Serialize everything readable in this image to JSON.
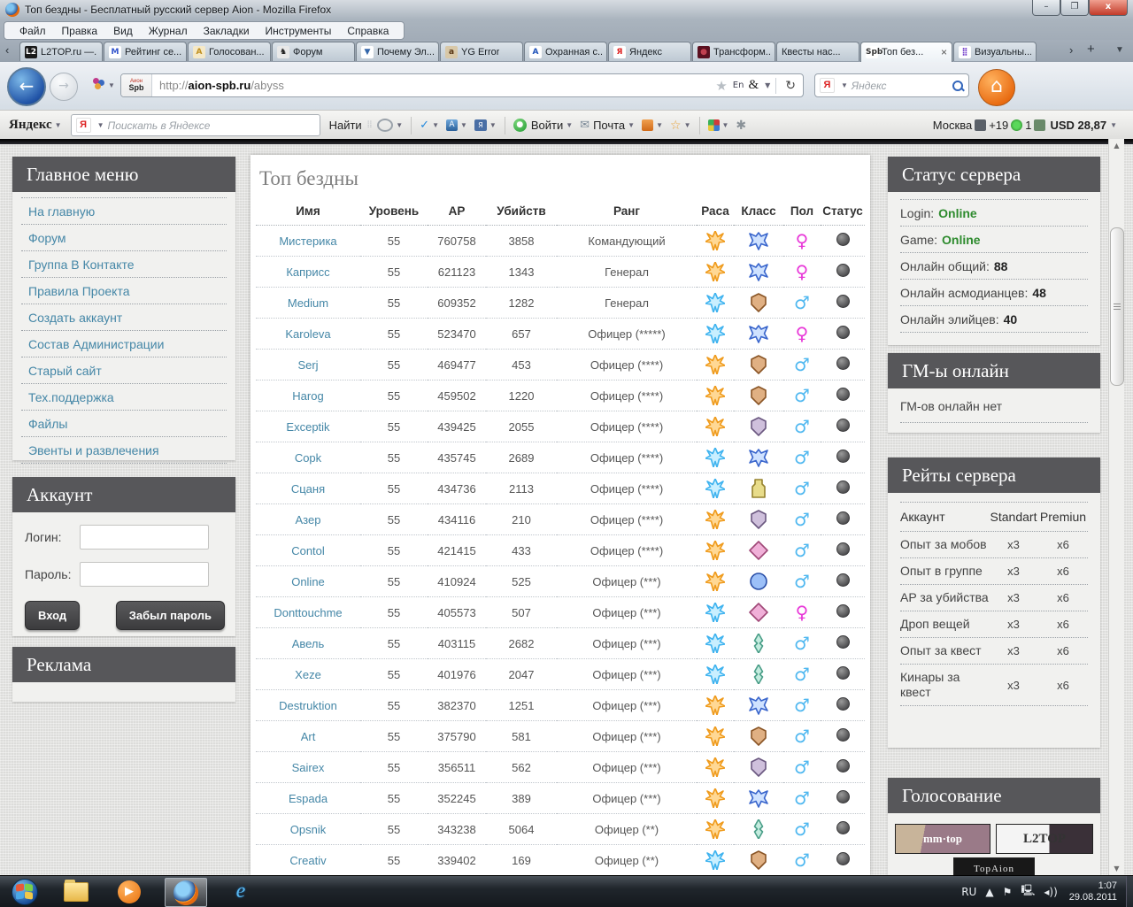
{
  "colors": {
    "link": "#4587a7",
    "online_green": "#2e8b2e",
    "female": "#e838d8",
    "male": "#50b8f0",
    "elyos": "#ef9b1d",
    "asmodian": "#3fb3ef",
    "widget_header": "#57575a"
  },
  "window": {
    "title": "Топ бездны - Бесплатный русский сервер Aion - Mozilla Firefox",
    "controls": {
      "minimize": "–",
      "restore": "❐",
      "close": "x"
    },
    "menu_items": [
      "Файл",
      "Правка",
      "Вид",
      "Журнал",
      "Закладки",
      "Инструменты",
      "Справка"
    ],
    "tabs": [
      {
        "label": "L2TOP.ru —...",
        "icon": "l2top"
      },
      {
        "label": "Рейтинг се...",
        "icon": "mblue"
      },
      {
        "label": "Голосован...",
        "icon": "agold"
      },
      {
        "label": "Форум",
        "icon": "chess"
      },
      {
        "label": "Почему Эл...",
        "icon": "vblue"
      },
      {
        "label": "YG Error",
        "icon": "aion"
      },
      {
        "label": "Охранная с...",
        "icon": "ablue"
      },
      {
        "label": "Яндекс",
        "icon": "yared"
      },
      {
        "label": "Трансформ...",
        "icon": "darkred"
      },
      {
        "label": "Квесты нас...",
        "icon": "none"
      },
      {
        "label": "Топ без...",
        "icon": "aionspb",
        "active": true,
        "close": "×"
      },
      {
        "label": "Визуальны...",
        "icon": "grid"
      }
    ],
    "url": {
      "prefix": "http://",
      "domain": "aion-spb.ru",
      "path": "/abyss"
    },
    "url_favicon": {
      "top": "Аион",
      "main": "Spb"
    },
    "url_lang_badge": "En",
    "search": {
      "placeholder": "Яндекс",
      "icon": "Я"
    }
  },
  "yandex_bar": {
    "brand": "Яндекс",
    "search_placeholder": "Поискать в Яндексе",
    "search_icon": "Я",
    "find_button": "Найти",
    "spellcheck": "ABC",
    "login": "Войти",
    "mail": "Почта",
    "city": "Москва",
    "temperature": "+19",
    "traffic": "1",
    "currency": "USD 28,87"
  },
  "page": {
    "sidebar_left": {
      "menu_title": "Главное меню",
      "menu_items": [
        "На главную",
        "Форум",
        "Группа В Контакте",
        "Правила Проекта",
        "Создать аккаунт",
        "Состав Администрации",
        "Старый сайт",
        "Тех.поддержка",
        "Файлы",
        "Эвенты и развлечения"
      ],
      "account": {
        "title": "Аккаунт",
        "login_label": "Логин:",
        "password_label": "Пароль:",
        "login_value": "",
        "password_value": "",
        "login_button": "Вход",
        "forgot_button": "Забыл пароль"
      },
      "ads_title": "Реклама"
    },
    "main": {
      "title": "Топ бездны",
      "columns": [
        "Имя",
        "Уровень",
        "AP",
        "Убийств",
        "Ранг",
        "Раса",
        "Класс",
        "Пол",
        "Статус"
      ],
      "rows": [
        {
          "name": "Мистерика",
          "level": "55",
          "ap": "760758",
          "kills": "3858",
          "rank": "Командующий",
          "race": "elyos",
          "cls": "wings",
          "gender": "f",
          "status": "offline"
        },
        {
          "name": "Каприсс",
          "level": "55",
          "ap": "621123",
          "kills": "1343",
          "rank": "Генерал",
          "race": "elyos",
          "cls": "wings",
          "gender": "f",
          "status": "offline"
        },
        {
          "name": "Medium",
          "level": "55",
          "ap": "609352",
          "kills": "1282",
          "rank": "Генерал",
          "race": "asmodian",
          "cls": "shield",
          "gender": "m",
          "status": "offline"
        },
        {
          "name": "Karoleva",
          "level": "55",
          "ap": "523470",
          "kills": "657",
          "rank": "Офицер (*****)",
          "race": "asmodian",
          "cls": "wings",
          "gender": "f",
          "status": "offline"
        },
        {
          "name": "Serj",
          "level": "55",
          "ap": "469477",
          "kills": "453",
          "rank": "Офицер (****)",
          "race": "elyos",
          "cls": "shield",
          "gender": "m",
          "status": "offline"
        },
        {
          "name": "Harog",
          "level": "55",
          "ap": "459502",
          "kills": "1220",
          "rank": "Офицер (****)",
          "race": "elyos",
          "cls": "shield",
          "gender": "m",
          "status": "offline"
        },
        {
          "name": "Exceptik",
          "level": "55",
          "ap": "439425",
          "kills": "2055",
          "rank": "Офицер (****)",
          "race": "elyos",
          "cls": "wolf",
          "gender": "m",
          "status": "offline"
        },
        {
          "name": "Copk",
          "level": "55",
          "ap": "435745",
          "kills": "2689",
          "rank": "Офицер (****)",
          "race": "asmodian",
          "cls": "wings",
          "gender": "m",
          "status": "offline"
        },
        {
          "name": "Сцаня",
          "level": "55",
          "ap": "434736",
          "kills": "2113",
          "rank": "Офицер (****)",
          "race": "asmodian",
          "cls": "totem",
          "gender": "m",
          "status": "offline"
        },
        {
          "name": "Азер",
          "level": "55",
          "ap": "434116",
          "kills": "210",
          "rank": "Офицер (****)",
          "race": "elyos",
          "cls": "wolf",
          "gender": "m",
          "status": "offline"
        },
        {
          "name": "Contol",
          "level": "55",
          "ap": "421415",
          "kills": "433",
          "rank": "Офицер (****)",
          "race": "elyos",
          "cls": "gem",
          "gender": "m",
          "status": "offline"
        },
        {
          "name": "Online",
          "level": "55",
          "ap": "410924",
          "kills": "525",
          "rank": "Офицер (***)",
          "race": "elyos",
          "cls": "orb",
          "gender": "m",
          "status": "offline"
        },
        {
          "name": "Donttouchme",
          "level": "55",
          "ap": "405573",
          "kills": "507",
          "rank": "Офицер (***)",
          "race": "asmodian",
          "cls": "gem",
          "gender": "f",
          "status": "offline"
        },
        {
          "name": "Авель",
          "level": "55",
          "ap": "403115",
          "kills": "2682",
          "rank": "Офицер (***)",
          "race": "asmodian",
          "cls": "spear",
          "gender": "m",
          "status": "offline"
        },
        {
          "name": "Xeze",
          "level": "55",
          "ap": "401976",
          "kills": "2047",
          "rank": "Офицер (***)",
          "race": "asmodian",
          "cls": "spear",
          "gender": "m",
          "status": "offline"
        },
        {
          "name": "Destruktion",
          "level": "55",
          "ap": "382370",
          "kills": "1251",
          "rank": "Офицер (***)",
          "race": "elyos",
          "cls": "wings",
          "gender": "m",
          "status": "offline"
        },
        {
          "name": "Art",
          "level": "55",
          "ap": "375790",
          "kills": "581",
          "rank": "Офицер (***)",
          "race": "elyos",
          "cls": "shield",
          "gender": "m",
          "status": "offline"
        },
        {
          "name": "Sairex",
          "level": "55",
          "ap": "356511",
          "kills": "562",
          "rank": "Офицер (***)",
          "race": "elyos",
          "cls": "wolf",
          "gender": "m",
          "status": "offline"
        },
        {
          "name": "Espada",
          "level": "55",
          "ap": "352245",
          "kills": "389",
          "rank": "Офицер (***)",
          "race": "elyos",
          "cls": "wings",
          "gender": "m",
          "status": "offline"
        },
        {
          "name": "Opsnik",
          "level": "55",
          "ap": "343238",
          "kills": "5064",
          "rank": "Офицер (**)",
          "race": "elyos",
          "cls": "spear",
          "gender": "m",
          "status": "offline"
        },
        {
          "name": "Creativ",
          "level": "55",
          "ap": "339402",
          "kills": "169",
          "rank": "Офицер (**)",
          "race": "asmodian",
          "cls": "shield",
          "gender": "m",
          "status": "offline"
        }
      ]
    },
    "sidebar_right": {
      "server_status": {
        "title": "Статус сервера",
        "rows": [
          {
            "label": "Login:",
            "value": "Online",
            "color": "green"
          },
          {
            "label": "Game:",
            "value": "Online",
            "color": "green"
          },
          {
            "label": "Онлайн общий:",
            "value": "88",
            "color": "dark"
          },
          {
            "label": "Онлайн асмодианцев:",
            "value": "48",
            "color": "dark"
          },
          {
            "label": "Онлайн элийцев:",
            "value": "40",
            "color": "dark"
          }
        ]
      },
      "gm": {
        "title": "ГМ-ы онлайн",
        "text": "ГМ-ов онлайн нет"
      },
      "rates": {
        "title": "Рейты сервера",
        "header": {
          "label": "Аккаунт",
          "standart": "Standart",
          "premium": "Premiun"
        },
        "rows": [
          {
            "label": "Опыт за мобов",
            "standart": "x3",
            "premium": "x6"
          },
          {
            "label": "Опыт в группе",
            "standart": "x3",
            "premium": "x6"
          },
          {
            "label": "AP за убийства",
            "standart": "x3",
            "premium": "x6"
          },
          {
            "label": "Дроп вещей",
            "standart": "x3",
            "premium": "x6"
          },
          {
            "label": "Опыт за квест",
            "standart": "x3",
            "premium": "x6"
          },
          {
            "label": "Кинары за квест",
            "standart": "x3",
            "premium": "x6"
          }
        ]
      },
      "voting": {
        "title": "Голосование",
        "banners": [
          {
            "key": "mmtop",
            "text": "mm·top"
          },
          {
            "key": "l2top",
            "text": "L2TOP"
          },
          {
            "key": "topaion",
            "text": "TopAion"
          }
        ]
      }
    }
  },
  "taskbar": {
    "tray": {
      "lang": "RU",
      "time": "1:07",
      "date": "29.08.2011"
    }
  }
}
